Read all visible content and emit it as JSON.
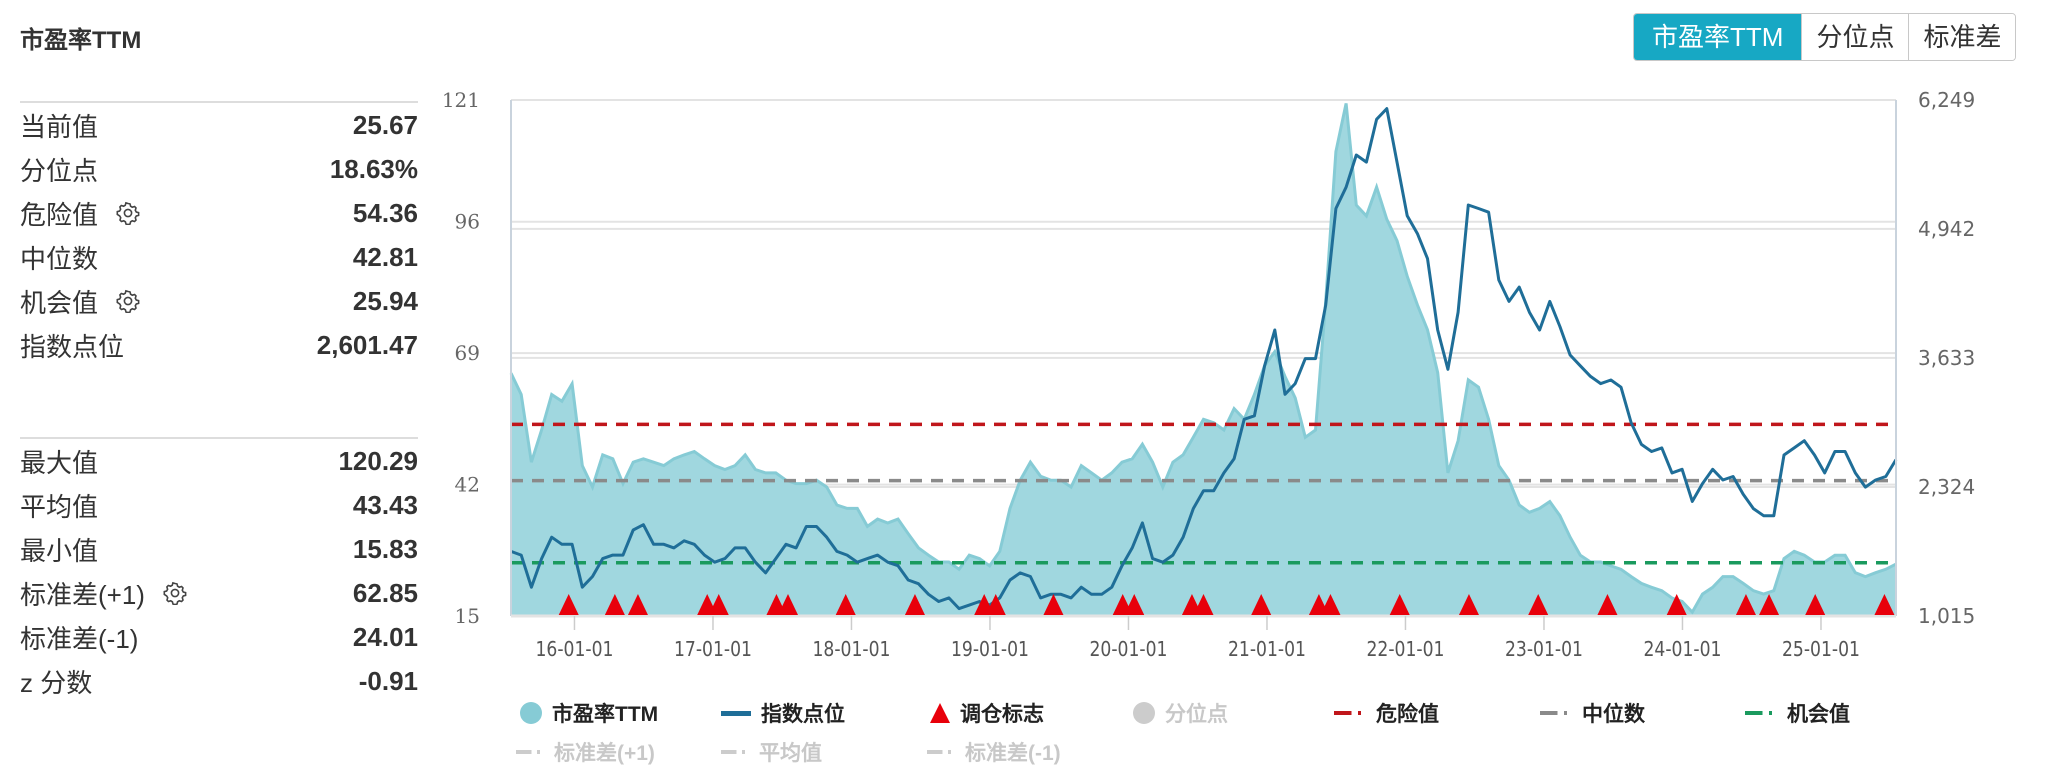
{
  "header": {
    "title": "市盈率TTM"
  },
  "toggle": [
    {
      "label": "市盈率TTM",
      "active": true
    },
    {
      "label": "分位点",
      "active": false
    },
    {
      "label": "标准差",
      "active": false
    }
  ],
  "stats_top": [
    {
      "label": "当前值",
      "value": "25.67",
      "gear": false
    },
    {
      "label": "分位点",
      "value": "18.63%",
      "gear": false
    },
    {
      "label": "危险值",
      "value": "54.36",
      "gear": true
    },
    {
      "label": "中位数",
      "value": "42.81",
      "gear": false
    },
    {
      "label": "机会值",
      "value": "25.94",
      "gear": true
    },
    {
      "label": "指数点位",
      "value": "2,601.47",
      "gear": false
    }
  ],
  "stats_bottom": [
    {
      "label": "最大值",
      "value": "120.29",
      "gear": false
    },
    {
      "label": "平均值",
      "value": "43.43",
      "gear": false
    },
    {
      "label": "最小值",
      "value": "15.83",
      "gear": false
    },
    {
      "label": "标准差(+1)",
      "value": "62.85",
      "gear": true
    },
    {
      "label": "标准差(-1)",
      "value": "24.01",
      "gear": false
    },
    {
      "label": "z 分数",
      "value": "-0.91",
      "gear": false
    }
  ],
  "colors": {
    "fill": "#a0d7df",
    "fill_line": "#86cbd5",
    "index": "#1f6e98",
    "danger": "#c0161b",
    "median": "#8a8a8a",
    "chance": "#1a9a5e",
    "marker": "#e8000b",
    "accent": "#17a8c4"
  },
  "chart_data": {
    "type": "area+line",
    "title": "市盈率TTM",
    "date_range": [
      "2015-07",
      "2025-07"
    ],
    "left_axis": {
      "ylim": [
        15,
        121
      ],
      "ticks": [
        121,
        96,
        69,
        42,
        15
      ],
      "tick_labels": [
        "121",
        "96",
        "69",
        "42",
        "15"
      ]
    },
    "right_axis": {
      "ylim": [
        1015,
        6249
      ],
      "ticks": [
        6249,
        4942,
        3633,
        2324,
        1015
      ],
      "tick_labels": [
        "6,249",
        "4,942",
        "3,633",
        "2,324",
        "1,015"
      ]
    },
    "x_ticks": [
      "16-01-01",
      "17-01-01",
      "18-01-01",
      "19-01-01",
      "20-01-01",
      "21-01-01",
      "22-01-01",
      "23-01-01",
      "24-01-01",
      "25-01-01"
    ],
    "pe_ttm": [
      64.9,
      60.5,
      46.6,
      53.2,
      60.5,
      59.1,
      62.7,
      45.9,
      41.5,
      48.1,
      47.3,
      42.2,
      46.6,
      47.3,
      46.6,
      45.9,
      47.3,
      48.1,
      48.8,
      47.3,
      45.9,
      45.1,
      45.9,
      48.1,
      45.1,
      44.4,
      44.4,
      42.9,
      42.2,
      42.2,
      42.9,
      41.5,
      37.8,
      37.1,
      37.1,
      33.4,
      34.9,
      34.1,
      34.9,
      31.9,
      29.0,
      27.5,
      26.1,
      26.1,
      24.6,
      27.5,
      26.8,
      25.3,
      28.3,
      37.1,
      42.9,
      46.6,
      43.7,
      42.9,
      42.9,
      41.5,
      45.9,
      44.4,
      42.9,
      44.4,
      46.6,
      47.3,
      50.3,
      46.6,
      41.5,
      46.6,
      48.1,
      51.7,
      55.4,
      54.7,
      53.2,
      57.6,
      55.4,
      60.5,
      66.4,
      69.3,
      64.2,
      59.8,
      51.7,
      53.2,
      79.6,
      110.4,
      120.3,
      99.4,
      97.2,
      103.1,
      96.5,
      92.1,
      84.8,
      78.9,
      73.8,
      65.0,
      44.4,
      51.0,
      63.5,
      62.0,
      55.4,
      45.9,
      42.9,
      37.8,
      36.3,
      37.1,
      38.5,
      35.6,
      31.2,
      27.5,
      26.1,
      26.1,
      25.3,
      24.6,
      23.1,
      21.7,
      20.9,
      20.2,
      18.7,
      18.0,
      15.8,
      19.5,
      20.9,
      23.1,
      23.1,
      21.7,
      20.2,
      19.5,
      20.2,
      26.8,
      28.3,
      27.5,
      26.1,
      26.1,
      27.5,
      27.5,
      23.9,
      23.1,
      23.9,
      24.6,
      25.67
    ],
    "index_points": [
      1670,
      1633,
      1307,
      1597,
      1814,
      1742,
      1742,
      1307,
      1416,
      1597,
      1633,
      1633,
      1887,
      1941,
      1742,
      1742,
      1706,
      1778,
      1742,
      1633,
      1561,
      1597,
      1706,
      1706,
      1561,
      1452,
      1597,
      1742,
      1706,
      1923,
      1923,
      1814,
      1670,
      1633,
      1561,
      1597,
      1633,
      1561,
      1525,
      1380,
      1343,
      1235,
      1162,
      1199,
      1090,
      1126,
      1162,
      1126,
      1199,
      1380,
      1452,
      1416,
      1199,
      1235,
      1235,
      1199,
      1307,
      1235,
      1235,
      1307,
      1525,
      1706,
      1959,
      1597,
      1561,
      1633,
      1814,
      2104,
      2285,
      2285,
      2467,
      2611,
      3010,
      3046,
      3553,
      3916,
      3264,
      3372,
      3626,
      3626,
      4169,
      5148,
      5365,
      5691,
      5619,
      6053,
      6162,
      5619,
      5075,
      4894,
      4640,
      3916,
      3517,
      4097,
      5184,
      5148,
      5111,
      4423,
      4206,
      4351,
      4097,
      3916,
      4206,
      3952,
      3662,
      3553,
      3445,
      3372,
      3409,
      3336,
      2974,
      2756,
      2684,
      2720,
      2467,
      2503,
      2177,
      2358,
      2503,
      2394,
      2430,
      2249,
      2104,
      2032,
      2032,
      2648,
      2720,
      2793,
      2648,
      2467,
      2684,
      2684,
      2467,
      2322,
      2394,
      2430,
      2601.47
    ],
    "rebalance_dates": [
      "2015-12",
      "2016-04",
      "2016-06",
      "2016-12",
      "2017-01",
      "2017-06",
      "2017-07",
      "2017-12",
      "2018-06",
      "2018-12",
      "2019-01",
      "2019-06",
      "2019-12",
      "2020-01",
      "2020-06",
      "2020-07",
      "2020-12",
      "2021-05",
      "2021-06",
      "2021-12",
      "2022-06",
      "2022-12",
      "2023-06",
      "2023-12",
      "2024-06",
      "2024-08",
      "2024-12",
      "2025-06"
    ],
    "reference_lines": {
      "danger": 54.36,
      "median": 42.81,
      "chance": 25.94
    },
    "legend": {
      "placement": "bottom",
      "items": [
        {
          "label": "市盈率TTM",
          "enabled": true
        },
        {
          "label": "指数点位",
          "enabled": true
        },
        {
          "label": "调仓标志",
          "enabled": true
        },
        {
          "label": "分位点",
          "enabled": false
        },
        {
          "label": "危险值",
          "enabled": true
        },
        {
          "label": "中位数",
          "enabled": true
        },
        {
          "label": "机会值",
          "enabled": true
        },
        {
          "label": "标准差(+1)",
          "enabled": false
        },
        {
          "label": "平均值",
          "enabled": false
        },
        {
          "label": "标准差(-1)",
          "enabled": false
        }
      ]
    }
  }
}
